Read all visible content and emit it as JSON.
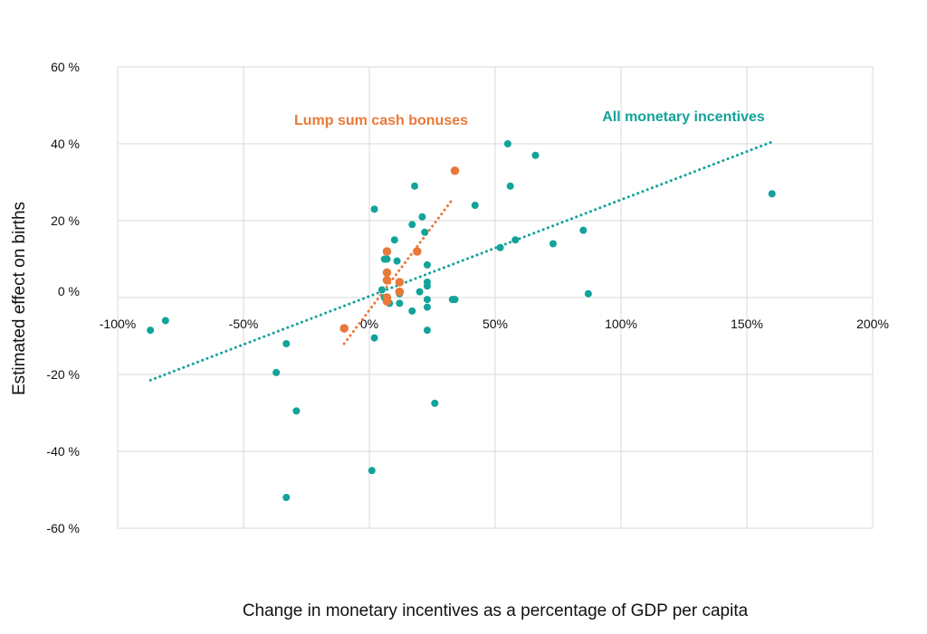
{
  "chart_data": {
    "type": "scatter",
    "title": "",
    "xlabel": "Change in monetary incentives as a percentage of GDP per capita",
    "ylabel": "Estimated effect on births",
    "xlim": [
      -100,
      200
    ],
    "ylim": [
      -60,
      60
    ],
    "grid": true,
    "x_ticks": [
      "-100%",
      "-50%",
      "0%",
      "50%",
      "100%",
      "150%",
      "200%"
    ],
    "y_ticks": [
      "60 %",
      "40 %",
      "20 %",
      "0 %",
      "-20 %",
      "-40 %",
      "-60 %"
    ],
    "series": [
      {
        "name": "All monetary incentives",
        "color": "#12a39a",
        "trendline": {
          "x": [
            -87,
            160
          ],
          "y": [
            -21.5,
            40.5
          ],
          "style": "dotted"
        },
        "points": [
          {
            "x": -87,
            "y": -8.5
          },
          {
            "x": -81,
            "y": -6
          },
          {
            "x": -33,
            "y": -12
          },
          {
            "x": -37,
            "y": -19.5
          },
          {
            "x": -29,
            "y": -29.5
          },
          {
            "x": -33,
            "y": -52
          },
          {
            "x": 1,
            "y": -45
          },
          {
            "x": 2,
            "y": -10.5
          },
          {
            "x": 26,
            "y": -27.5
          },
          {
            "x": 23,
            "y": -8.5
          },
          {
            "x": 2,
            "y": 23
          },
          {
            "x": 5,
            "y": 2
          },
          {
            "x": 6,
            "y": 10
          },
          {
            "x": 7,
            "y": 10
          },
          {
            "x": 6,
            "y": 0
          },
          {
            "x": 8,
            "y": -1.5
          },
          {
            "x": 10,
            "y": 15
          },
          {
            "x": 11,
            "y": 9.5
          },
          {
            "x": 12,
            "y": 1
          },
          {
            "x": 12,
            "y": -1.5
          },
          {
            "x": 17,
            "y": 19
          },
          {
            "x": 17,
            "y": -3.5
          },
          {
            "x": 18,
            "y": 29
          },
          {
            "x": 20,
            "y": 1.5
          },
          {
            "x": 21,
            "y": 21
          },
          {
            "x": 22,
            "y": 17
          },
          {
            "x": 23,
            "y": 8.5
          },
          {
            "x": 23,
            "y": 4
          },
          {
            "x": 23,
            "y": 3
          },
          {
            "x": 23,
            "y": -0.5
          },
          {
            "x": 23,
            "y": -2.5
          },
          {
            "x": 33,
            "y": -0.5
          },
          {
            "x": 34,
            "y": -0.5
          },
          {
            "x": 42,
            "y": 24
          },
          {
            "x": 52,
            "y": 13
          },
          {
            "x": 55,
            "y": 40
          },
          {
            "x": 56,
            "y": 29
          },
          {
            "x": 58,
            "y": 15
          },
          {
            "x": 66,
            "y": 37
          },
          {
            "x": 73,
            "y": 14
          },
          {
            "x": 85,
            "y": 17.5
          },
          {
            "x": 87,
            "y": 1
          },
          {
            "x": 160,
            "y": 27
          }
        ]
      },
      {
        "name": "Lump sum cash bonuses",
        "color": "#e9793a",
        "trendline": {
          "x": [
            -10,
            33
          ],
          "y": [
            -12,
            25.5
          ],
          "style": "dotted"
        },
        "points": [
          {
            "x": -10,
            "y": -8
          },
          {
            "x": 7,
            "y": 12
          },
          {
            "x": 7,
            "y": 6.5
          },
          {
            "x": 7,
            "y": 4.5
          },
          {
            "x": 7,
            "y": 0
          },
          {
            "x": 7,
            "y": -1
          },
          {
            "x": 12,
            "y": 4
          },
          {
            "x": 12,
            "y": 1.5
          },
          {
            "x": 19,
            "y": 12
          },
          {
            "x": 34,
            "y": 33
          }
        ]
      }
    ]
  }
}
